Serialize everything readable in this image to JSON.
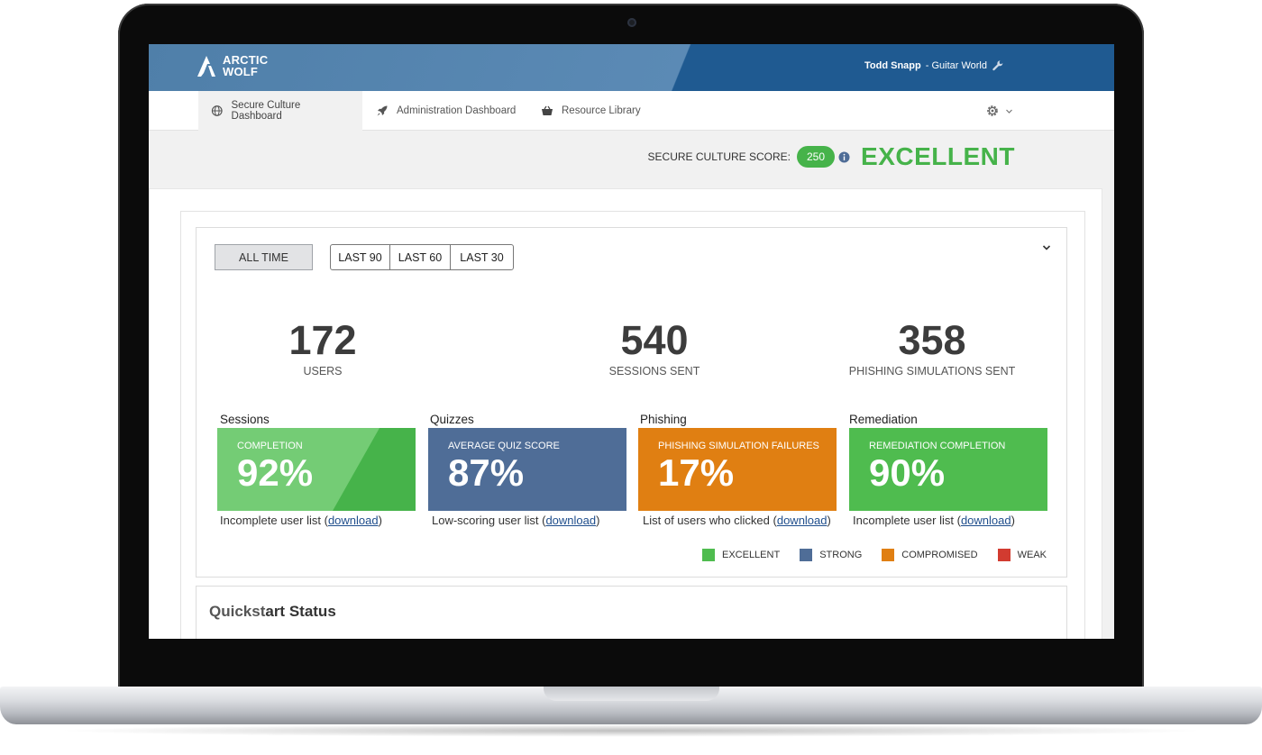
{
  "header": {
    "logo_line1": "ARCTIC",
    "logo_line2": "WOLF",
    "user_name": "Todd Snapp",
    "org": "- Guitar World"
  },
  "nav": {
    "tabs": [
      {
        "label": "Secure Culture Dashboard",
        "icon": "globe-icon"
      },
      {
        "label": "Administration Dashboard",
        "icon": "rocket-icon"
      },
      {
        "label": "Resource Library",
        "icon": "basket-icon"
      }
    ]
  },
  "score": {
    "label": "SECURE CULTURE SCORE:",
    "value": "250",
    "rating": "EXCELLENT"
  },
  "filters": {
    "all_time": "ALL TIME",
    "ranges": [
      "LAST 90",
      "LAST 60",
      "LAST 30"
    ]
  },
  "stats": [
    {
      "value": "172",
      "label": "USERS"
    },
    {
      "value": "540",
      "label": "SESSIONS SENT"
    },
    {
      "value": "358",
      "label": "PHISHING SIMULATIONS SENT"
    }
  ],
  "tiles": [
    {
      "title": "Sessions",
      "sub": "COMPLETION",
      "value": "92%",
      "link_prefix": "Incomplete user list (",
      "link": "download",
      "link_suffix": ")",
      "color": "#74cc75"
    },
    {
      "title": "Quizzes",
      "sub": "AVERAGE QUIZ SCORE",
      "value": "87%",
      "link_prefix": "Low-scoring user list (",
      "link": "download",
      "link_suffix": ")",
      "color": "#4f6d97"
    },
    {
      "title": "Phishing",
      "sub": "PHISHING SIMULATION  FAILURES",
      "value": "17%",
      "link_prefix": "List of users who clicked (",
      "link": "download",
      "link_suffix": ")",
      "color": "#e07f12"
    },
    {
      "title": "Remediation",
      "sub": "REMEDIATION COMPLETION",
      "value": "90%",
      "link_prefix": "Incomplete user list (",
      "link": "download",
      "link_suffix": ")",
      "color": "#4fbc4f"
    }
  ],
  "legend": [
    {
      "label": "EXCELLENT",
      "color": "#4fbc4f"
    },
    {
      "label": "STRONG",
      "color": "#4f6d97"
    },
    {
      "label": "COMPROMISED",
      "color": "#e07f12"
    },
    {
      "label": "WEAK",
      "color": "#d23b30"
    }
  ],
  "quickstart": {
    "title_a": "Quickst",
    "title_b": "art Status"
  }
}
